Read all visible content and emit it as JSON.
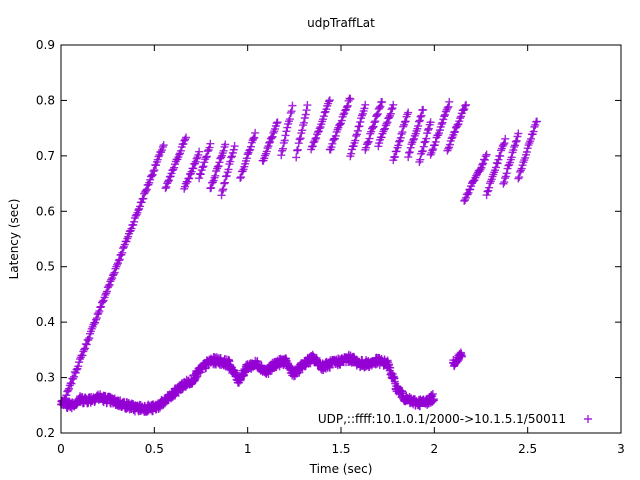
{
  "chart_data": {
    "type": "scatter",
    "title": "udpTraffLat",
    "xlabel": "Time (sec)",
    "ylabel": "Latency (sec)",
    "xlim": [
      0,
      3
    ],
    "ylim": [
      0.2,
      0.9
    ],
    "xticks": [
      0,
      0.5,
      1,
      1.5,
      2,
      2.5,
      3
    ],
    "xtick_labels": [
      "0",
      "0.5",
      "1",
      "1.5",
      "2",
      "2.5",
      "3"
    ],
    "yticks": [
      0.2,
      0.3,
      0.4,
      0.5,
      0.6,
      0.7,
      0.8,
      0.9
    ],
    "ytick_labels": [
      "0.2",
      "0.3",
      "0.4",
      "0.5",
      "0.6",
      "0.7",
      "0.8",
      "0.9"
    ],
    "grid": false,
    "legend_position": "bottom-right",
    "marker": "plus",
    "series": [
      {
        "name": "UDP,::ffff:10.1.0.1/2000->10.1.5.1/50011",
        "color": "#9400d3",
        "ramps": [
          {
            "x": [
              0.02,
              0.55
            ],
            "y": [
              0.26,
              0.72
            ]
          },
          {
            "x": [
              0.56,
              0.67
            ],
            "y": [
              0.64,
              0.735
            ]
          },
          {
            "x": [
              0.66,
              0.74
            ],
            "y": [
              0.64,
              0.705
            ]
          },
          {
            "x": [
              0.74,
              0.8
            ],
            "y": [
              0.66,
              0.72
            ]
          },
          {
            "x": [
              0.8,
              0.88
            ],
            "y": [
              0.64,
              0.72
            ]
          },
          {
            "x": [
              0.86,
              0.93
            ],
            "y": [
              0.63,
              0.72
            ]
          },
          {
            "x": [
              0.96,
              1.04
            ],
            "y": [
              0.66,
              0.74
            ]
          },
          {
            "x": [
              1.08,
              1.16
            ],
            "y": [
              0.69,
              0.76
            ]
          },
          {
            "x": [
              1.18,
              1.24
            ],
            "y": [
              0.7,
              0.79
            ]
          },
          {
            "x": [
              1.26,
              1.32
            ],
            "y": [
              0.7,
              0.79
            ]
          },
          {
            "x": [
              1.34,
              1.44
            ],
            "y": [
              0.71,
              0.8
            ]
          },
          {
            "x": [
              1.44,
              1.55
            ],
            "y": [
              0.71,
              0.805
            ]
          },
          {
            "x": [
              1.55,
              1.63
            ],
            "y": [
              0.7,
              0.79
            ]
          },
          {
            "x": [
              1.63,
              1.72
            ],
            "y": [
              0.71,
              0.8
            ]
          },
          {
            "x": [
              1.7,
              1.78
            ],
            "y": [
              0.72,
              0.79
            ]
          },
          {
            "x": [
              1.78,
              1.86
            ],
            "y": [
              0.69,
              0.78
            ]
          },
          {
            "x": [
              1.86,
              1.94
            ],
            "y": [
              0.7,
              0.785
            ]
          },
          {
            "x": [
              1.92,
              1.98
            ],
            "y": [
              0.69,
              0.76
            ]
          },
          {
            "x": [
              1.98,
              2.08
            ],
            "y": [
              0.7,
              0.795
            ]
          },
          {
            "x": [
              2.07,
              2.17
            ],
            "y": [
              0.71,
              0.795
            ]
          },
          {
            "x": [
              2.16,
              2.28
            ],
            "y": [
              0.62,
              0.7
            ]
          },
          {
            "x": [
              2.28,
              2.38
            ],
            "y": [
              0.63,
              0.73
            ]
          },
          {
            "x": [
              2.37,
              2.45
            ],
            "y": [
              0.65,
              0.74
            ]
          },
          {
            "x": [
              2.45,
              2.55
            ],
            "y": [
              0.66,
              0.765
            ]
          }
        ],
        "lower_band": {
          "x": [
            0.0,
            0.05,
            0.1,
            0.15,
            0.2,
            0.25,
            0.3,
            0.35,
            0.4,
            0.45,
            0.5,
            0.55,
            0.6,
            0.65,
            0.7,
            0.75,
            0.8,
            0.85,
            0.9,
            0.95,
            1.0,
            1.05,
            1.1,
            1.15,
            1.2,
            1.25,
            1.3,
            1.35,
            1.4,
            1.45,
            1.5,
            1.55,
            1.6,
            1.65,
            1.7,
            1.75,
            1.8,
            1.85,
            1.9,
            1.95,
            2.0,
            2.05,
            2.1,
            2.15
          ],
          "y": [
            0.255,
            0.25,
            0.26,
            0.26,
            0.265,
            0.26,
            0.255,
            0.25,
            0.245,
            0.245,
            0.245,
            0.255,
            0.27,
            0.285,
            0.295,
            0.315,
            0.33,
            0.33,
            0.325,
            0.295,
            0.32,
            0.325,
            0.31,
            0.325,
            0.33,
            0.305,
            0.325,
            0.335,
            0.32,
            0.325,
            0.33,
            0.335,
            0.325,
            0.325,
            0.33,
            0.325,
            0.28,
            0.26,
            0.255,
            0.255,
            0.265,
            null,
            0.325,
            0.345
          ]
        }
      }
    ]
  }
}
